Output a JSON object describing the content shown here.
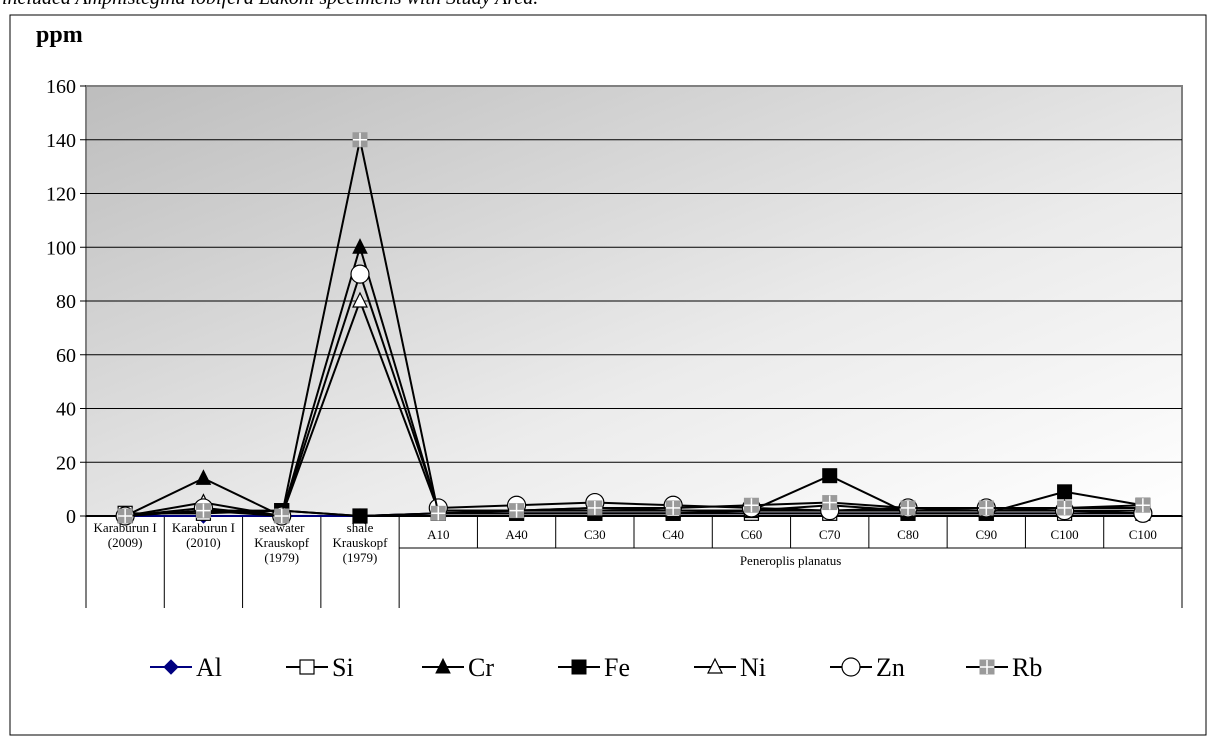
{
  "caption": "included Amphistegina lobifera Lakoni specimens with      Study Area.",
  "chart_data": {
    "type": "line",
    "ylabel": "ppm",
    "ylim": [
      0,
      160
    ],
    "yticks": [
      0,
      20,
      40,
      60,
      80,
      100,
      120,
      140,
      160
    ],
    "grid": true,
    "legend_position": "bottom",
    "categories": [
      [
        "Karaburun I",
        "(2009)"
      ],
      [
        "Karaburun I",
        "(2010)"
      ],
      [
        "seawater",
        "Krauskopf",
        "(1979)"
      ],
      [
        "shale",
        "Krauskopf",
        "(1979)"
      ],
      [
        "A10"
      ],
      [
        "A40"
      ],
      [
        "C30"
      ],
      [
        "C40"
      ],
      [
        "C60"
      ],
      [
        "C70"
      ],
      [
        "C80"
      ],
      [
        "C90"
      ],
      [
        "C100"
      ],
      [
        "C100"
      ]
    ],
    "group_label": "Peneroplis planatus",
    "group_start_index": 4,
    "series": [
      {
        "name": "Al",
        "marker": "diamond",
        "color": "#000080",
        "values": [
          0,
          0,
          0,
          0,
          1,
          1,
          1,
          1,
          1,
          1,
          1,
          1,
          1,
          1
        ]
      },
      {
        "name": "Si",
        "marker": "square-open",
        "color": "#000000",
        "values": [
          1,
          1,
          2,
          0,
          1,
          1,
          1,
          1,
          1,
          1,
          1,
          1,
          1,
          1
        ]
      },
      {
        "name": "Cr",
        "marker": "triangle-filled",
        "color": "#000000",
        "values": [
          0,
          14,
          0,
          100,
          2,
          2,
          2,
          2,
          2,
          2,
          2,
          3,
          3,
          3
        ]
      },
      {
        "name": "Fe",
        "marker": "square-filled",
        "color": "#000000",
        "values": [
          0,
          2,
          2,
          0,
          1,
          1,
          1,
          1,
          2,
          15,
          1,
          1,
          9,
          4
        ]
      },
      {
        "name": "Ni",
        "marker": "triangle-open",
        "color": "#000000",
        "values": [
          0,
          5,
          0,
          80,
          2,
          2,
          3,
          2,
          2,
          4,
          2,
          2,
          2,
          2
        ]
      },
      {
        "name": "Zn",
        "marker": "circle-open",
        "color": "#000000",
        "values": [
          0,
          3,
          0,
          90,
          3,
          4,
          5,
          4,
          3,
          2,
          3,
          3,
          2,
          1
        ]
      },
      {
        "name": "Rb",
        "marker": "square-gray",
        "color": "#000000",
        "values": [
          0,
          2,
          0,
          140,
          1,
          2,
          3,
          3,
          4,
          5,
          3,
          3,
          3,
          4
        ]
      }
    ]
  }
}
